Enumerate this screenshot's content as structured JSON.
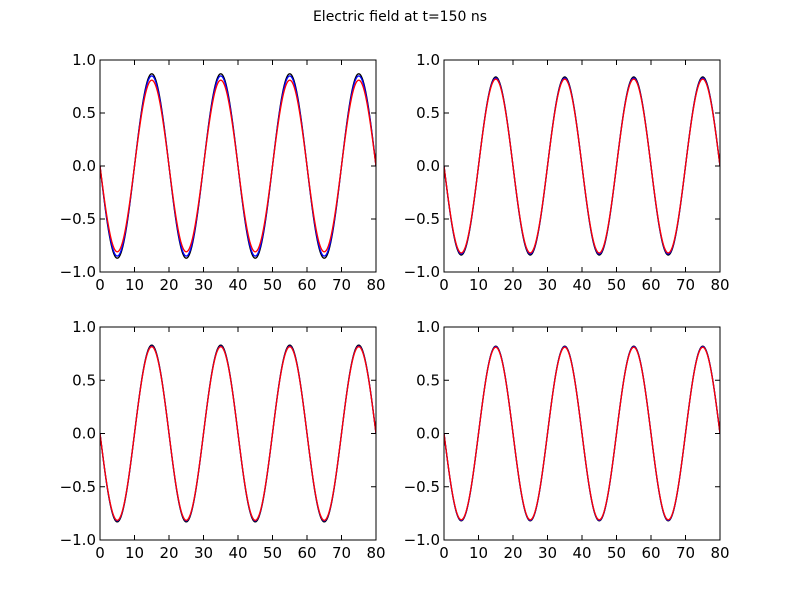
{
  "figure": {
    "title": "Electric field at t=150 ns"
  },
  "chart_data": [
    {
      "type": "line",
      "title": "",
      "xlabel": "",
      "ylabel": "",
      "xlim": [
        0,
        80
      ],
      "ylim": [
        -1.0,
        1.0
      ],
      "xticks": [
        "0",
        "10",
        "20",
        "30",
        "40",
        "50",
        "60",
        "70",
        "80"
      ],
      "yticks": [
        "−1.0",
        "−0.5",
        "0.0",
        "0.5",
        "1.0"
      ],
      "grid": false,
      "series": [
        {
          "color": "#000000",
          "amplitude": 0.87,
          "period": 20,
          "x_range": [
            0,
            80
          ]
        },
        {
          "color": "#0000ff",
          "amplitude": 0.85,
          "period": 20,
          "x_range": [
            0,
            80
          ]
        },
        {
          "color": "#ff0000",
          "amplitude": 0.81,
          "period": 20,
          "x_range": [
            0,
            80
          ]
        }
      ]
    },
    {
      "type": "line",
      "title": "",
      "xlabel": "",
      "ylabel": "",
      "xlim": [
        0,
        80
      ],
      "ylim": [
        -1.0,
        1.0
      ],
      "xticks": [
        "0",
        "10",
        "20",
        "30",
        "40",
        "50",
        "60",
        "70",
        "80"
      ],
      "yticks": [
        "−1.0",
        "−0.5",
        "0.0",
        "0.5",
        "1.0"
      ],
      "grid": false,
      "series": [
        {
          "color": "#000000",
          "amplitude": 0.84,
          "period": 20,
          "x_range": [
            0,
            80
          ]
        },
        {
          "color": "#0000ff",
          "amplitude": 0.83,
          "period": 20,
          "x_range": [
            0,
            80
          ]
        },
        {
          "color": "#ff0000",
          "amplitude": 0.82,
          "period": 20,
          "x_range": [
            0,
            80
          ]
        }
      ]
    },
    {
      "type": "line",
      "title": "",
      "xlabel": "",
      "ylabel": "",
      "xlim": [
        0,
        80
      ],
      "ylim": [
        -1.0,
        1.0
      ],
      "xticks": [
        "0",
        "10",
        "20",
        "30",
        "40",
        "50",
        "60",
        "70",
        "80"
      ],
      "yticks": [
        "−1.0",
        "−0.5",
        "0.0",
        "0.5",
        "1.0"
      ],
      "grid": false,
      "series": [
        {
          "color": "#000000",
          "amplitude": 0.83,
          "period": 20,
          "x_range": [
            0,
            80
          ]
        },
        {
          "color": "#0000ff",
          "amplitude": 0.82,
          "period": 20,
          "x_range": [
            0,
            80
          ]
        },
        {
          "color": "#ff0000",
          "amplitude": 0.815,
          "period": 20,
          "x_range": [
            0,
            80
          ]
        }
      ]
    },
    {
      "type": "line",
      "title": "",
      "xlabel": "",
      "ylabel": "",
      "xlim": [
        0,
        80
      ],
      "ylim": [
        -1.0,
        1.0
      ],
      "xticks": [
        "0",
        "10",
        "20",
        "30",
        "40",
        "50",
        "60",
        "70",
        "80"
      ],
      "yticks": [
        "−1.0",
        "−0.5",
        "0.0",
        "0.5",
        "1.0"
      ],
      "grid": false,
      "series": [
        {
          "color": "#000000",
          "amplitude": 0.82,
          "period": 20,
          "x_range": [
            0,
            80
          ]
        },
        {
          "color": "#0000ff",
          "amplitude": 0.815,
          "period": 20,
          "x_range": [
            0,
            80
          ]
        },
        {
          "color": "#ff0000",
          "amplitude": 0.81,
          "period": 20,
          "x_range": [
            0,
            80
          ]
        }
      ]
    }
  ]
}
